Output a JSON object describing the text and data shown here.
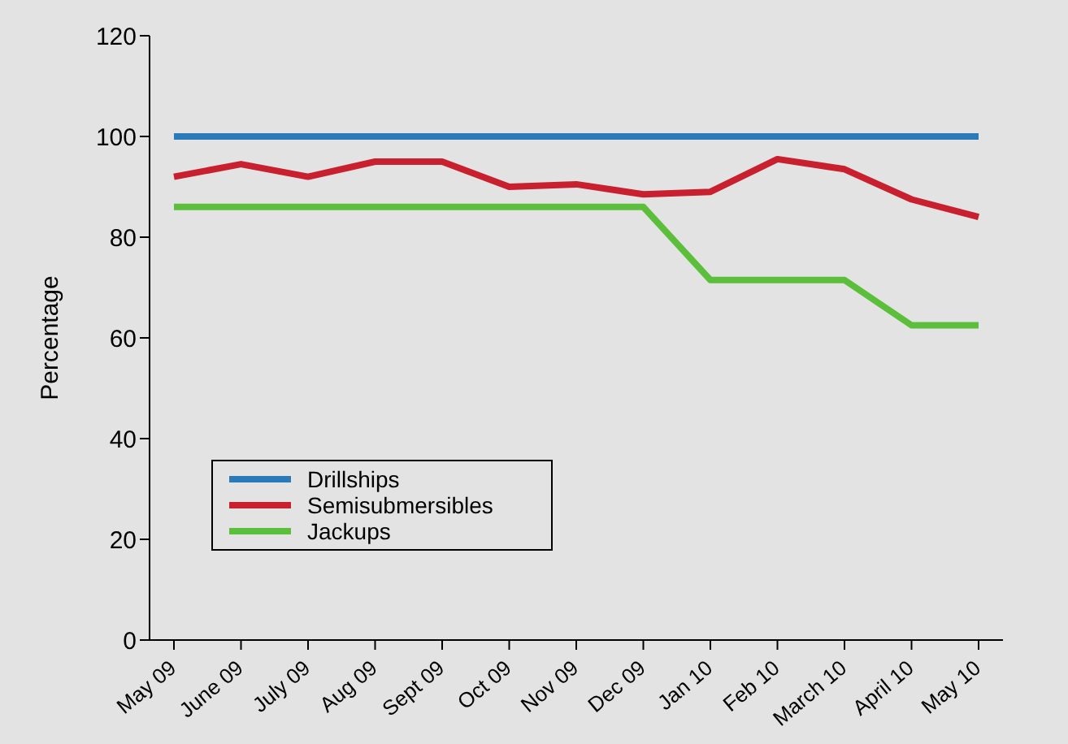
{
  "chart_data": {
    "type": "line",
    "ylabel": "Percentage",
    "categories": [
      "May 09",
      "June 09",
      "July 09",
      "Aug 09",
      "Sept 09",
      "Oct 09",
      "Nov 09",
      "Dec 09",
      "Jan 10",
      "Feb 10",
      "March 10",
      "April 10",
      "May 10"
    ],
    "series": [
      {
        "name": "Drillships",
        "color": "#2a7ab9",
        "values": [
          100,
          100,
          100,
          100,
          100,
          100,
          100,
          100,
          100,
          100,
          100,
          100,
          100
        ]
      },
      {
        "name": "Semisubmersibles",
        "color": "#c8202f",
        "values": [
          92,
          94.5,
          92,
          95,
          95,
          90,
          90.5,
          88.5,
          89,
          95.5,
          93.5,
          87.5,
          84
        ]
      },
      {
        "name": "Jackups",
        "color": "#5cbf3b",
        "values": [
          86,
          86,
          86,
          86,
          86,
          86,
          86,
          86,
          71.5,
          71.5,
          71.5,
          62.5,
          62.5
        ]
      }
    ],
    "ylim": [
      0,
      120
    ],
    "yticks": [
      0,
      20,
      40,
      60,
      80,
      100,
      120
    ],
    "grid": false,
    "legend": "bottom left",
    "marker": "none",
    "line_style": "solid"
  }
}
